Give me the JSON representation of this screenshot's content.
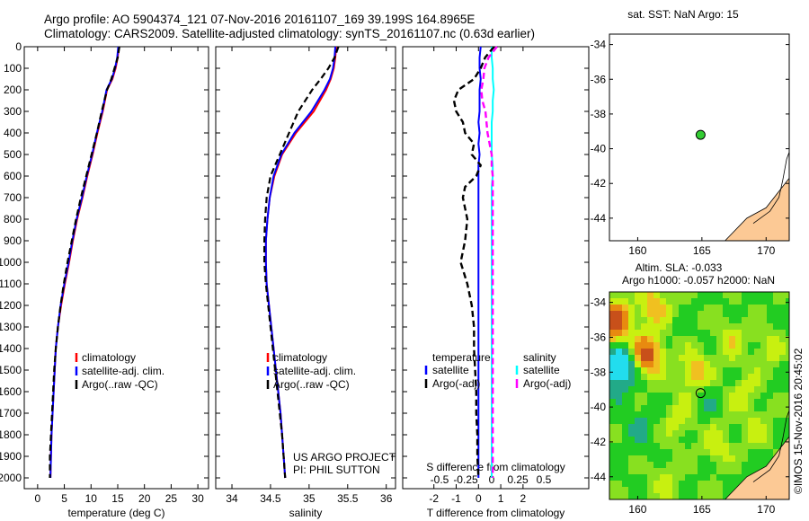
{
  "header": {
    "line1": "Argo profile: AO 5904374_121 07-Nov-2016 20161107_169 39.199S 164.8965E",
    "line2": "Climatology: CARS2009. Satellite-adjusted climatology: synTS_20161107.nc (0.63d earlier)"
  },
  "chart_data": [
    {
      "type": "line",
      "id": "temperature",
      "xlabel": "temperature (deg C)",
      "ylabel": "depth",
      "xlim": [
        -2.5,
        32
      ],
      "ylim": [
        2050,
        0
      ],
      "xticks": [
        0,
        5,
        10,
        15,
        20,
        25,
        30
      ],
      "yticks": [
        0,
        100,
        200,
        300,
        400,
        500,
        600,
        700,
        800,
        900,
        1000,
        1100,
        1200,
        1300,
        1400,
        1500,
        1600,
        1700,
        1800,
        1900,
        2000
      ],
      "depth": [
        0,
        50,
        100,
        150,
        200,
        300,
        400,
        500,
        600,
        700,
        800,
        900,
        1000,
        1100,
        1200,
        1300,
        1400,
        1500,
        1600,
        1700,
        1800,
        1900,
        2000
      ],
      "series": [
        {
          "name": "climatology",
          "color": "#ff0000",
          "dash": false,
          "values": [
            15.2,
            15,
            14.6,
            14,
            13,
            12.2,
            11.2,
            10.3,
            9.3,
            8.4,
            7.4,
            6.6,
            5.9,
            5.1,
            4.4,
            3.8,
            3.4,
            3.2,
            3,
            2.8,
            2.6,
            2.5,
            2.4
          ]
        },
        {
          "name": "satellite-adj. clim.",
          "color": "#0000ff",
          "dash": false,
          "values": [
            15.1,
            14.9,
            14.5,
            13.9,
            12.9,
            12.1,
            11.1,
            10.2,
            9.2,
            8.3,
            7.3,
            6.5,
            5.8,
            5,
            4.3,
            3.8,
            3.4,
            3.2,
            3,
            2.8,
            2.6,
            2.5,
            2.4
          ]
        },
        {
          "name": "Argo(..raw -QC)",
          "color": "#000000",
          "dash": true,
          "values": [
            15.3,
            15,
            14.4,
            13.8,
            13,
            12,
            11.1,
            10.1,
            9.1,
            8.1,
            7.2,
            6.4,
            5.6,
            4.9,
            4.3,
            3.8,
            3.4,
            3.1,
            2.9,
            2.7,
            2.5,
            2.3,
            2.3
          ]
        }
      ],
      "legend": "center"
    },
    {
      "type": "line",
      "id": "salinity",
      "xlabel": "salinity",
      "xlim": [
        33.79,
        36.12
      ],
      "ylim": [
        2050,
        0
      ],
      "xticks": [
        34,
        34.5,
        35,
        35.5,
        36
      ],
      "depth": [
        0,
        50,
        100,
        150,
        200,
        300,
        400,
        500,
        600,
        700,
        800,
        900,
        1000,
        1100,
        1200,
        1300,
        1400,
        1500,
        1600,
        1700,
        1800,
        1900,
        2000
      ],
      "series": [
        {
          "name": "climatology",
          "color": "#ff0000",
          "dash": false,
          "values": [
            35.35,
            35.34,
            35.32,
            35.28,
            35.22,
            35.06,
            34.83,
            34.65,
            34.55,
            34.49,
            34.46,
            34.44,
            34.44,
            34.45,
            34.48,
            34.51,
            34.54,
            34.57,
            34.6,
            34.63,
            34.65,
            34.67,
            34.69
          ]
        },
        {
          "name": "satellite-adj. clim.",
          "color": "#0000ff",
          "dash": false,
          "values": [
            35.34,
            35.33,
            35.31,
            35.27,
            35.2,
            35.03,
            34.81,
            34.64,
            34.54,
            34.49,
            34.46,
            34.44,
            34.44,
            34.45,
            34.48,
            34.51,
            34.54,
            34.57,
            34.6,
            34.63,
            34.65,
            34.67,
            34.69
          ]
        },
        {
          "name": "Argo(..raw -QC)",
          "color": "#000000",
          "dash": true,
          "values": [
            35.38,
            35.33,
            35.25,
            35.15,
            35.04,
            34.86,
            34.74,
            34.62,
            34.5,
            34.45,
            34.43,
            34.42,
            34.42,
            34.44,
            34.47,
            34.5,
            34.53,
            34.56,
            34.59,
            34.62,
            34.65,
            34.67,
            34.69
          ]
        }
      ],
      "legend": "center",
      "annotation": [
        "US ARGO PROJECT",
        "PI: PHIL SUTTON"
      ]
    },
    {
      "type": "line",
      "id": "difference",
      "xlabel": "T difference from climatology",
      "x2label": "S difference from climatology",
      "xlim": [
        -3.4,
        4.95
      ],
      "x2lim": [
        -0.5,
        0.5
      ],
      "ylim": [
        2050,
        0
      ],
      "xticks": [
        -2,
        -1,
        0,
        1,
        2
      ],
      "x2ticks": [
        "-0.5",
        "-0.25",
        "0",
        "0.25",
        "0.5"
      ],
      "x2tick_values": [
        -0.5,
        -0.25,
        0,
        0.25,
        0.5
      ],
      "depth": [
        0,
        50,
        100,
        150,
        200,
        250,
        300,
        350,
        400,
        450,
        500,
        550,
        600,
        650,
        700,
        800,
        900,
        1000,
        1100,
        1200,
        1300,
        1400,
        1500,
        1600,
        1700,
        1800,
        1900,
        2000
      ],
      "t_series": [
        {
          "name": "satellite",
          "color": "#0000ff",
          "dash": false,
          "values": [
            0.1,
            0.05,
            0.05,
            0.1,
            0.05,
            0.05,
            0.05,
            0,
            0.05,
            0,
            0.05,
            0,
            0,
            0,
            0,
            0,
            0,
            0,
            0,
            0,
            0,
            0,
            0,
            0,
            0,
            0,
            0,
            0
          ]
        },
        {
          "name": "Argo(-adj)",
          "color": "#000000",
          "dash": true,
          "values": [
            0.7,
            0.3,
            0.1,
            -0.2,
            -0.9,
            -1.1,
            -1.0,
            -0.7,
            -0.6,
            -0.2,
            -0.3,
            0.1,
            -0.1,
            -0.6,
            -0.7,
            -0.5,
            -0.6,
            -0.8,
            -0.5,
            -0.3,
            -0.2,
            -0.2,
            -0.15,
            -0.1,
            -0.1,
            -0.05,
            -0.05,
            0
          ]
        }
      ],
      "s_series": [
        {
          "name": "satellite",
          "color": "#00ffff",
          "dash": false,
          "values": [
            0,
            0,
            0.01,
            0.01,
            0.02,
            0.01,
            0.01,
            0,
            0,
            0,
            0,
            0.01,
            0.01,
            0,
            0,
            0,
            0,
            0,
            0,
            0,
            0,
            0,
            0,
            0,
            0,
            0,
            0,
            0
          ]
        },
        {
          "name": "Argo(-adj)",
          "color": "#ff00ff",
          "dash": true,
          "values": [
            0.05,
            -0.03,
            -0.07,
            -0.08,
            -0.1,
            -0.09,
            -0.06,
            -0.05,
            -0.04,
            -0.02,
            0,
            0,
            0.01,
            0.01,
            0.01,
            0.01,
            0.01,
            0.01,
            0.01,
            0.01,
            0.01,
            0.01,
            0.01,
            0.01,
            0.01,
            0.01,
            0.01,
            0.01
          ]
        }
      ],
      "legend_headers": [
        "temperature",
        "salinity"
      ]
    },
    {
      "type": "scatter",
      "id": "sst-map",
      "title": "sat. SST: NaN Argo: 15",
      "xlim": [
        157.8,
        171.8
      ],
      "ylim": [
        -45.3,
        -33.4
      ],
      "xticks": [
        160,
        165,
        170
      ],
      "yticks": [
        -34,
        -36,
        -38,
        -40,
        -42,
        -44
      ],
      "point": {
        "lon": 164.8965,
        "lat": -39.199,
        "color": "#33cc33"
      }
    },
    {
      "type": "heatmap",
      "id": "sla-map",
      "title": [
        "Altim. SLA: -0.033",
        "Argo h1000: -0.057 h2000: NaN"
      ],
      "xlim": [
        157.8,
        171.8
      ],
      "ylim": [
        -45.3,
        -33.4
      ],
      "xticks": [
        160,
        165,
        170
      ],
      "yticks": [
        -34,
        -36,
        -38,
        -40,
        -42,
        -44
      ],
      "point": {
        "lon": 164.8965,
        "lat": -39.199
      }
    }
  ],
  "footer": {
    "copyright": "©IMOS 15-Nov-2016 20:45:02"
  },
  "colors": {
    "land": "#fcc995",
    "sla_base": "#22cc22"
  }
}
